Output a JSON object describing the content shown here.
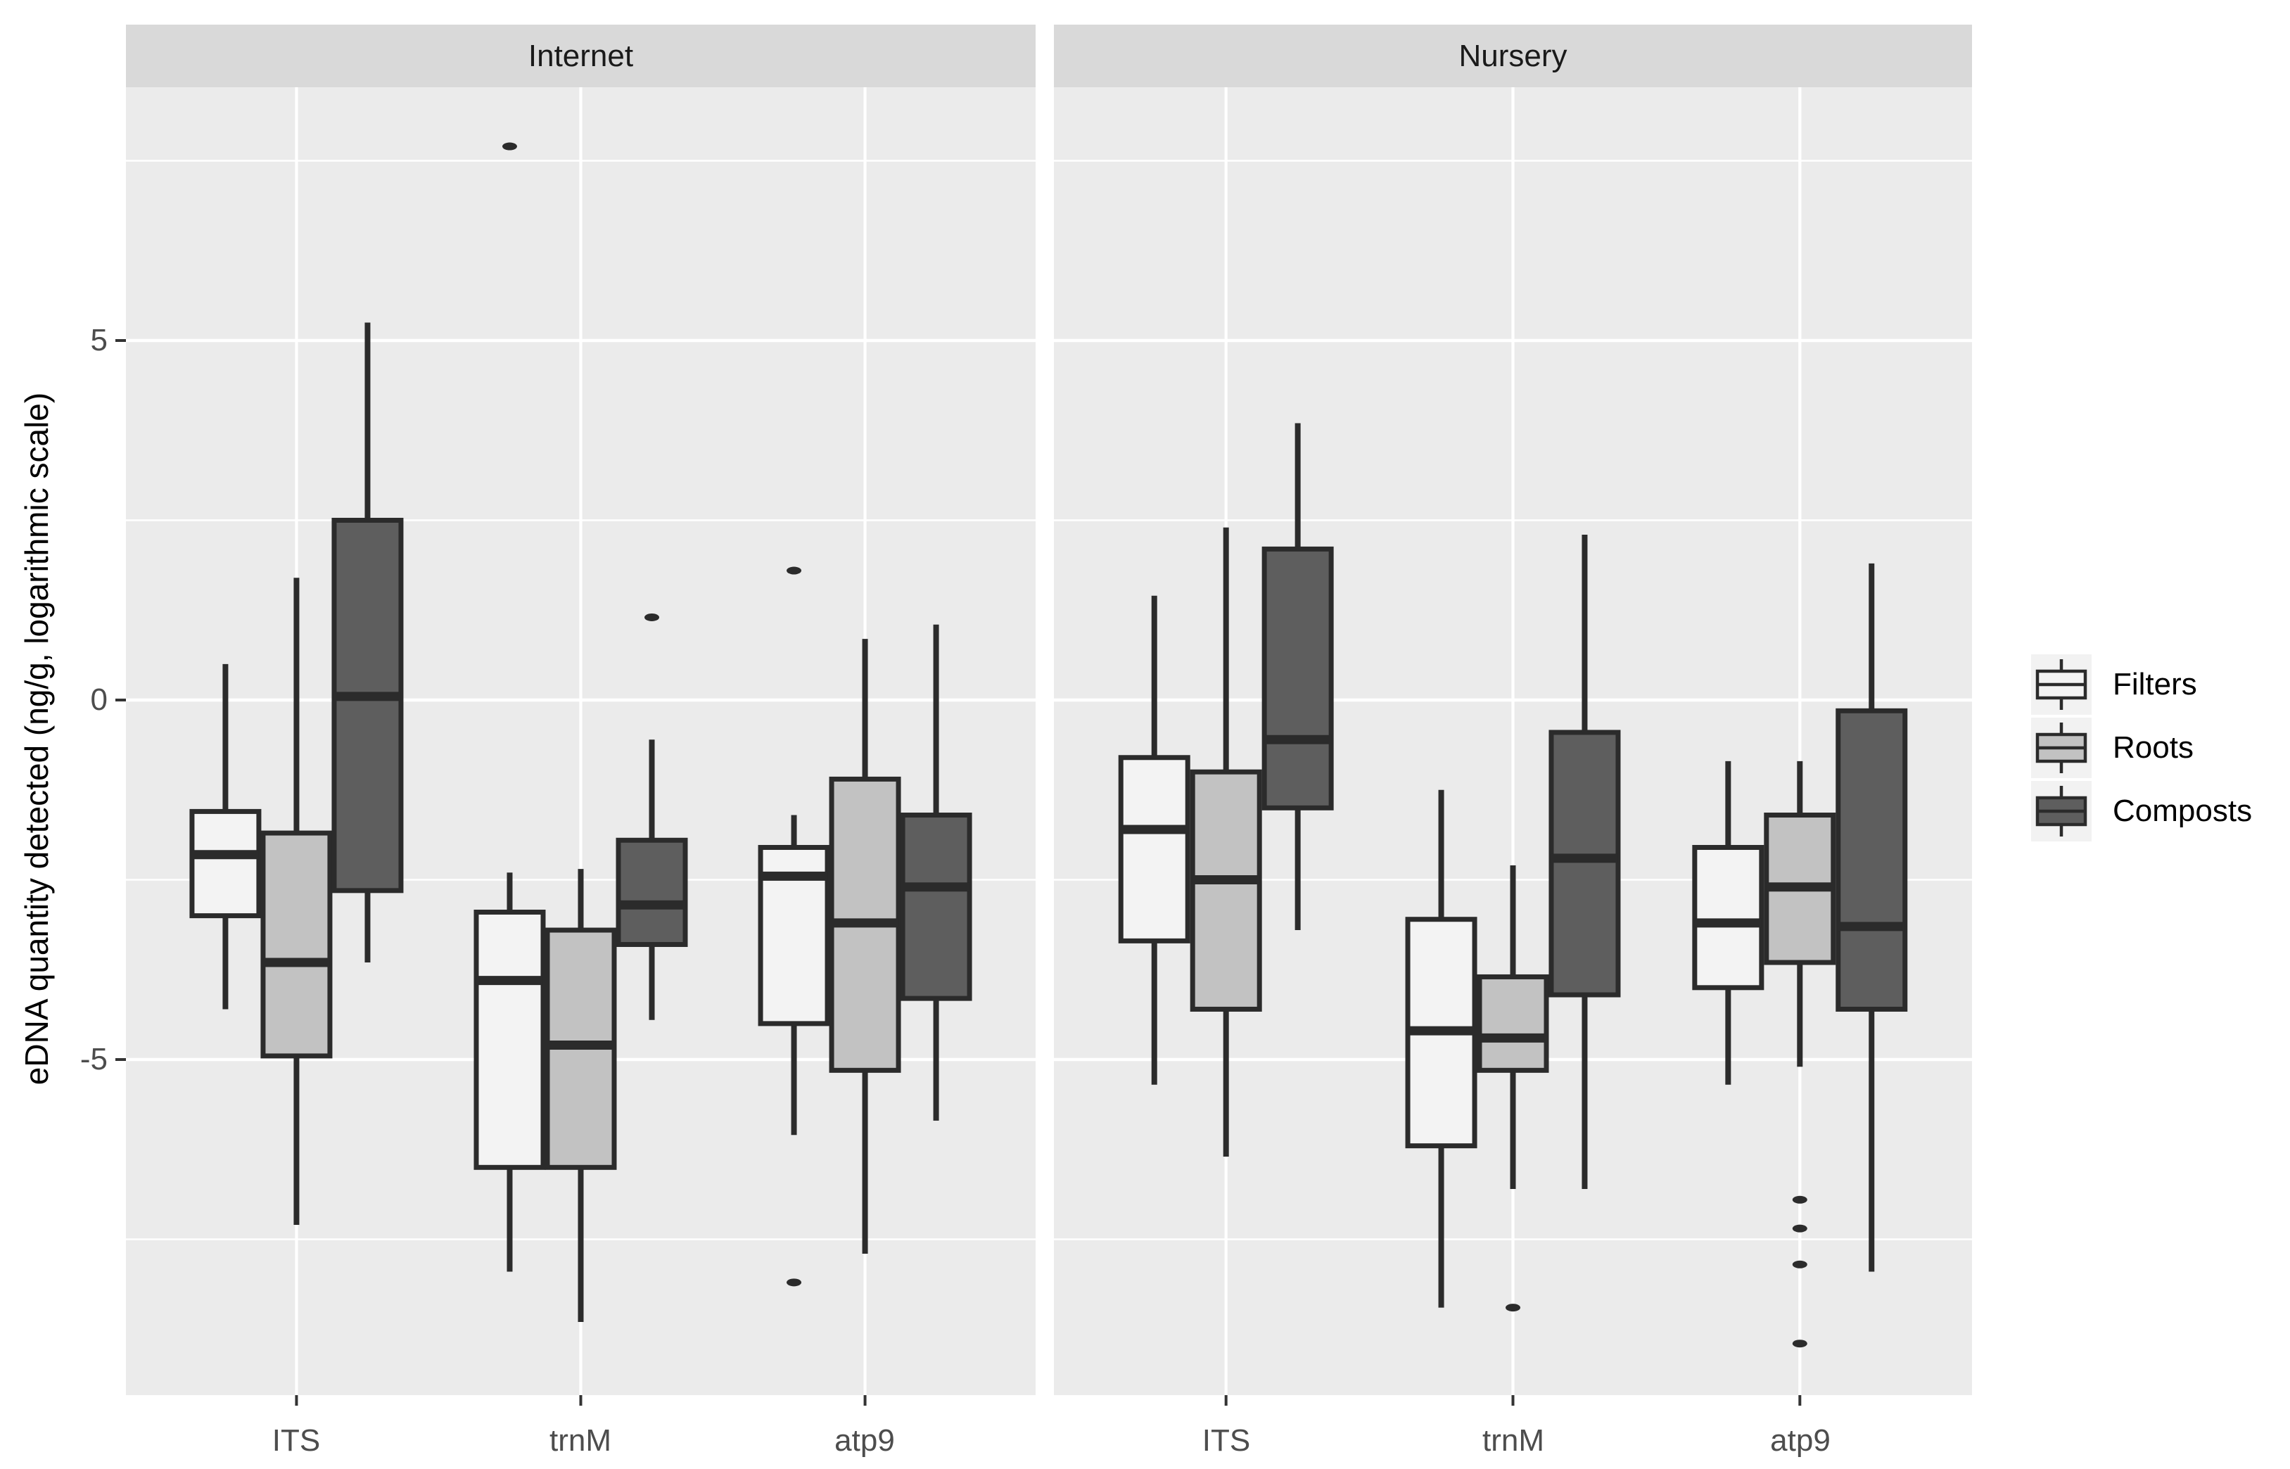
{
  "chart_data": {
    "type": "boxplot",
    "facets": [
      "Internet",
      "Nursery"
    ],
    "categories": [
      "ITS",
      "trnM",
      "atp9"
    ],
    "series": [
      "Filters",
      "Roots",
      "Composts"
    ],
    "series_colors": [
      "#F3F3F3",
      "#C2C2C2",
      "#5E5E5E"
    ],
    "ylabel": "eDNA quantity detected (ng/g, logarithmic scale)",
    "yticks": [
      5,
      0,
      -5
    ],
    "ytick_labels": [
      "5",
      "0",
      "-5"
    ],
    "ylim": [
      -9.7,
      8.5
    ],
    "grid": {
      "major": [
        5,
        0,
        -5
      ],
      "minor": [
        7.5,
        2.5,
        -2.5,
        -7.5
      ]
    },
    "legend_position": "right",
    "colors": {
      "panel_bg": "#EBEBEB",
      "strip_bg": "#D9D9D9",
      "grid": "#FFFFFF",
      "stroke": "#2B2B2B",
      "tick_mark": "#333333",
      "tick_text": "#4D4D4D"
    },
    "facets_data": [
      {
        "facet": "Internet",
        "groups": [
          {
            "category": "ITS",
            "boxes": [
              {
                "series": "Filters",
                "whisker_low": -4.3,
                "q1": -3.0,
                "median": -2.15,
                "q3": -1.55,
                "whisker_high": 0.5,
                "outliers": []
              },
              {
                "series": "Roots",
                "whisker_low": -7.3,
                "q1": -4.95,
                "median": -3.65,
                "q3": -1.85,
                "whisker_high": 1.7,
                "outliers": []
              },
              {
                "series": "Composts",
                "whisker_low": -3.65,
                "q1": -2.65,
                "median": 0.05,
                "q3": 2.5,
                "whisker_high": 5.25,
                "outliers": []
              }
            ]
          },
          {
            "category": "trnM",
            "boxes": [
              {
                "series": "Filters",
                "whisker_low": -7.95,
                "q1": -6.5,
                "median": -3.9,
                "q3": -2.95,
                "whisker_high": -2.4,
                "outliers": [
                  7.7
                ]
              },
              {
                "series": "Roots",
                "whisker_low": -8.65,
                "q1": -6.5,
                "median": -4.8,
                "q3": -3.2,
                "whisker_high": -2.35,
                "outliers": []
              },
              {
                "series": "Composts",
                "whisker_low": -4.45,
                "q1": -3.4,
                "median": -2.85,
                "q3": -1.95,
                "whisker_high": -0.55,
                "outliers": [
                  1.15
                ]
              }
            ]
          },
          {
            "category": "atp9",
            "boxes": [
              {
                "series": "Filters",
                "whisker_low": -6.05,
                "q1": -4.5,
                "median": -2.45,
                "q3": -2.05,
                "whisker_high": -1.6,
                "outliers": [
                  1.8,
                  -8.1
                ]
              },
              {
                "series": "Roots",
                "whisker_low": -7.7,
                "q1": -5.15,
                "median": -3.1,
                "q3": -1.1,
                "whisker_high": 0.85,
                "outliers": []
              },
              {
                "series": "Composts",
                "whisker_low": -5.85,
                "q1": -4.15,
                "median": -2.6,
                "q3": -1.6,
                "whisker_high": 1.05,
                "outliers": []
              }
            ]
          }
        ]
      },
      {
        "facet": "Nursery",
        "groups": [
          {
            "category": "ITS",
            "boxes": [
              {
                "series": "Filters",
                "whisker_low": -5.35,
                "q1": -3.35,
                "median": -1.8,
                "q3": -0.8,
                "whisker_high": 1.45,
                "outliers": []
              },
              {
                "series": "Roots",
                "whisker_low": -6.35,
                "q1": -4.3,
                "median": -2.5,
                "q3": -1.0,
                "whisker_high": 2.4,
                "outliers": []
              },
              {
                "series": "Composts",
                "whisker_low": -3.2,
                "q1": -1.5,
                "median": -0.55,
                "q3": 2.1,
                "whisker_high": 3.85,
                "outliers": []
              }
            ]
          },
          {
            "category": "trnM",
            "boxes": [
              {
                "series": "Filters",
                "whisker_low": -8.45,
                "q1": -6.2,
                "median": -4.6,
                "q3": -3.05,
                "whisker_high": -1.25,
                "outliers": []
              },
              {
                "series": "Roots",
                "whisker_low": -6.8,
                "q1": -5.15,
                "median": -4.7,
                "q3": -3.85,
                "whisker_high": -2.3,
                "outliers": [
                  -8.45
                ]
              },
              {
                "series": "Composts",
                "whisker_low": -6.8,
                "q1": -4.1,
                "median": -2.2,
                "q3": -0.45,
                "whisker_high": 2.3,
                "outliers": []
              }
            ]
          },
          {
            "category": "atp9",
            "boxes": [
              {
                "series": "Filters",
                "whisker_low": -5.35,
                "q1": -4.0,
                "median": -3.1,
                "q3": -2.05,
                "whisker_high": -0.85,
                "outliers": []
              },
              {
                "series": "Roots",
                "whisker_low": -5.1,
                "q1": -3.65,
                "median": -2.6,
                "q3": -1.6,
                "whisker_high": -0.85,
                "outliers": [
                  -6.95,
                  -7.35,
                  -7.85,
                  -8.95
                ]
              },
              {
                "series": "Composts",
                "whisker_low": -7.95,
                "q1": -4.3,
                "median": -3.15,
                "q3": -0.15,
                "whisker_high": 1.9,
                "outliers": []
              }
            ]
          }
        ]
      }
    ]
  }
}
